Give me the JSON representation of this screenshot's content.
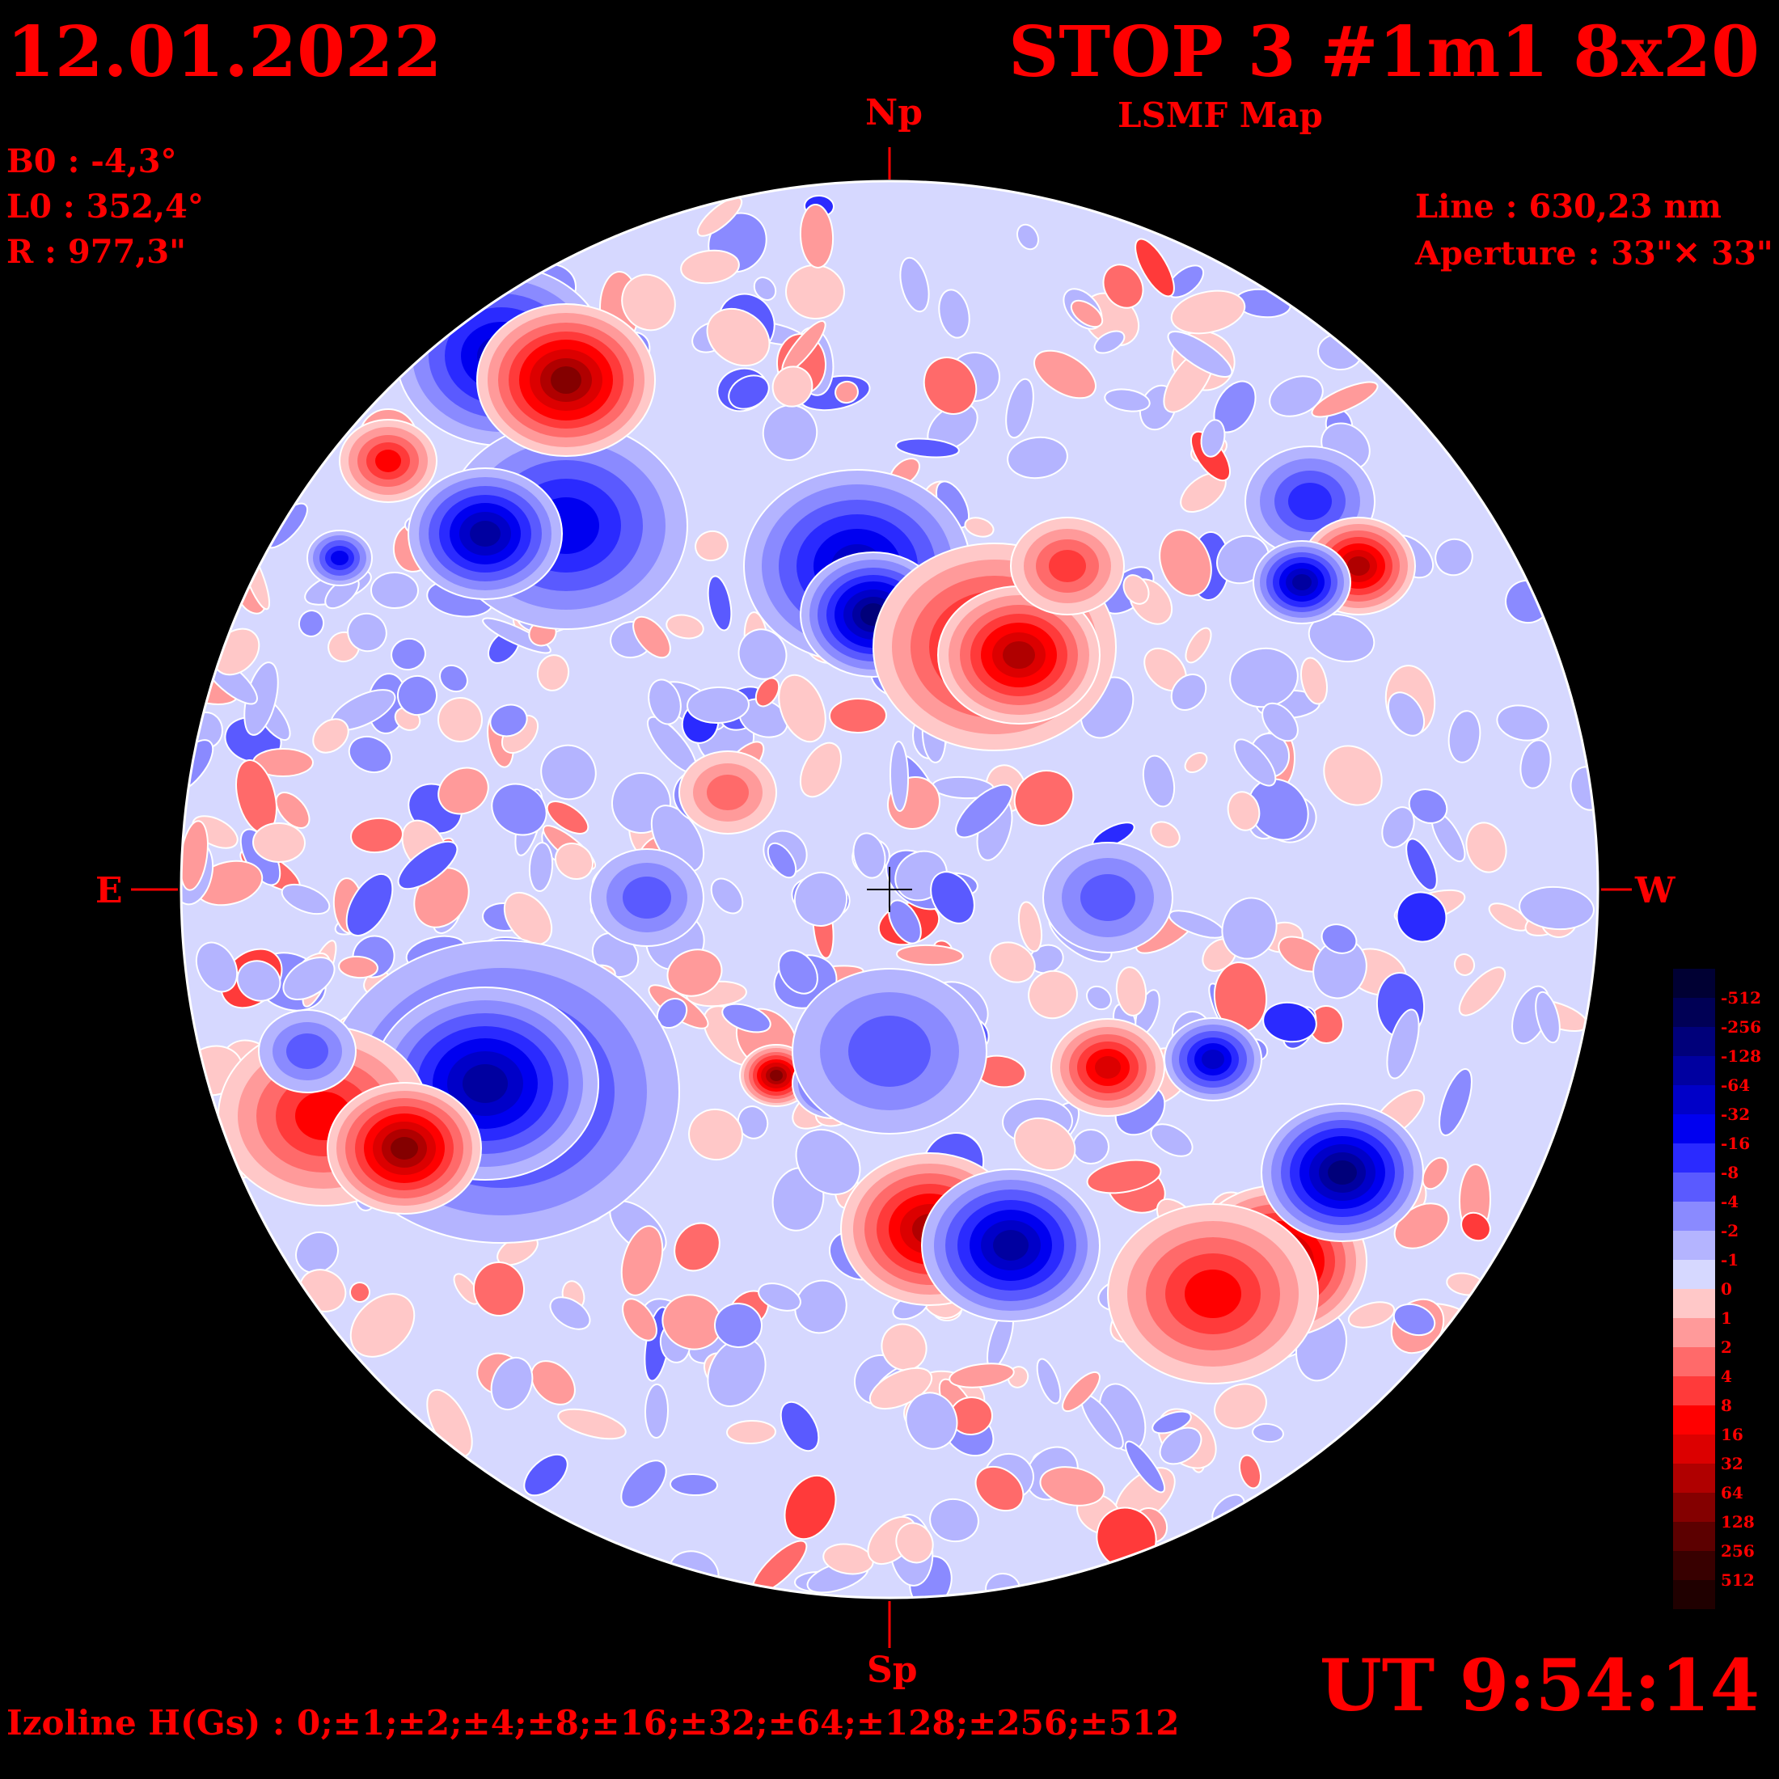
{
  "header": {
    "date": "12.01.2022",
    "title": "STOP 3 #1m1 8x20",
    "subtitle": "LSMF  Map"
  },
  "parameters": {
    "b0": "B0 : -4,3°",
    "l0": "L0 : 352,4°",
    "radius": "R  : 977,3\"",
    "line": "Line :  630,23 nm",
    "aperture": "Aperture : 33\"✕ 33\""
  },
  "directions": {
    "north": "Np",
    "south": "Sp",
    "east": "E",
    "west": "W"
  },
  "time": "UT 9:54:14",
  "izoline": "Izoline H(Gs) : 0;±1;±2;±4;±8;±16;±32;±64;±128;±256;±512",
  "colorbar": {
    "levels": [
      {
        "label": "-512",
        "color": "#000033"
      },
      {
        "label": "-256",
        "color": "#000055"
      },
      {
        "label": "-128",
        "color": "#00007a"
      },
      {
        "label": "-64",
        "color": "#0000a0"
      },
      {
        "label": "-32",
        "color": "#0000c8"
      },
      {
        "label": "-16",
        "color": "#0000f0"
      },
      {
        "label": "-8",
        "color": "#2a2aff"
      },
      {
        "label": "-4",
        "color": "#5a5aff"
      },
      {
        "label": "-2",
        "color": "#8a8aff"
      },
      {
        "label": "-1",
        "color": "#b4b4ff"
      },
      {
        "label": "0",
        "color": "#d6d8ff"
      },
      {
        "label": "1",
        "color": "#ffc8c8"
      },
      {
        "label": "2",
        "color": "#ff9a9a"
      },
      {
        "label": "4",
        "color": "#ff6a6a"
      },
      {
        "label": "8",
        "color": "#ff3a3a"
      },
      {
        "label": "16",
        "color": "#ff0000"
      },
      {
        "label": "32",
        "color": "#dc0000"
      },
      {
        "label": "64",
        "color": "#b00000"
      },
      {
        "label": "128",
        "color": "#840000"
      },
      {
        "label": "256",
        "color": "#5c0000"
      },
      {
        "label": "512",
        "color": "#380000"
      }
    ],
    "extra_bottom_color": "#200000"
  },
  "colors": {
    "text": "#ff0000",
    "background": "#000000",
    "disk_base": "#d6d8ff",
    "isoline": "#ffffff"
  }
}
